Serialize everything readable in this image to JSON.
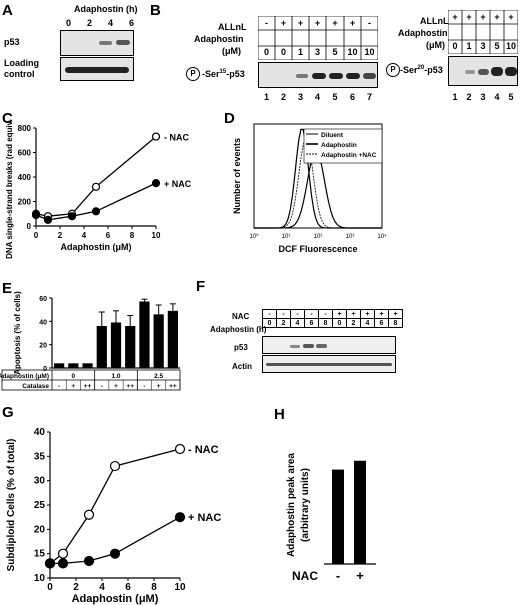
{
  "panel_letters": {
    "A": "A",
    "B": "B",
    "C": "C",
    "D": "D",
    "E": "E",
    "F": "F",
    "G": "G",
    "H": "H"
  },
  "panelA": {
    "title": "Adaphostin (h)",
    "times": [
      "0",
      "2",
      "4",
      "6"
    ],
    "row1": "p53",
    "row2": "Loading control"
  },
  "panelB1": {
    "row1": "ALLnL",
    "row2": "Adaphostin",
    "row2b": "(μM)",
    "allnl": [
      "-",
      "+",
      "+",
      "+",
      "+",
      "+",
      "-"
    ],
    "adaph": [
      "0",
      "0",
      "1",
      "3",
      "5",
      "10",
      "10"
    ],
    "lanes": [
      "1",
      "2",
      "3",
      "4",
      "5",
      "6",
      "7"
    ],
    "marker": "P",
    "blot_label": "-Ser",
    "sup": "15",
    "blot_tail": "-p53"
  },
  "panelB2": {
    "row1": "ALLnL",
    "row2": "Adaphostin",
    "row2b": "(μM)",
    "allnl": [
      "+",
      "+",
      "+",
      "+",
      "+"
    ],
    "adaph": [
      "0",
      "1",
      "3",
      "5",
      "10"
    ],
    "lanes": [
      "1",
      "2",
      "3",
      "4",
      "5"
    ],
    "marker": "P",
    "blot_label": "-Ser",
    "sup": "20",
    "blot_tail": "-p53"
  },
  "chart_data": [
    {
      "panel": "C",
      "type": "line",
      "xlabel": "Adaphostin (μM)",
      "ylabel": "DNA single-strand breaks (rad equivalents)",
      "xticks": [
        "0",
        "2",
        "4",
        "6",
        "8",
        "10"
      ],
      "yticks": [
        "0",
        "200",
        "400",
        "600",
        "800"
      ],
      "xlim": [
        0,
        10
      ],
      "ylim": [
        0,
        800
      ],
      "series": [
        {
          "name": "- NAC",
          "marker": "open",
          "x": [
            0,
            1,
            3,
            5,
            10
          ],
          "y": [
            100,
            80,
            100,
            320,
            730
          ]
        },
        {
          "name": "+ NAC",
          "marker": "filled",
          "x": [
            0,
            1,
            3,
            5,
            10
          ],
          "y": [
            90,
            50,
            80,
            120,
            350
          ]
        }
      ]
    },
    {
      "panel": "D",
      "type": "line",
      "xlabel": "DCF Fluorescence",
      "ylabel": "Number of events",
      "xticks": [
        "10⁰",
        "10¹",
        "10²",
        "10³",
        "10⁴"
      ],
      "legend": [
        "Diluent",
        "Adaphostin",
        "Adaphostin +NAC"
      ]
    },
    {
      "panel": "E",
      "type": "bar",
      "ylabel": "Apoptosis (% of cells)",
      "yticks": [
        "0",
        "20",
        "40",
        "60"
      ],
      "ylim": [
        0,
        60
      ],
      "table_row1_label": "Adaphostin (μM)",
      "table_row1": [
        "0",
        "1.0",
        "2.5"
      ],
      "table_row2_label": "Catalase",
      "table_row2": [
        "-",
        "+",
        "++",
        "-",
        "+",
        "++",
        "-",
        "+",
        "++"
      ],
      "values": [
        4,
        4,
        4,
        36,
        39,
        36,
        57,
        46,
        49
      ],
      "errors": [
        0,
        0,
        0,
        12,
        10,
        9,
        2,
        8,
        6
      ]
    },
    {
      "panel": "G",
      "type": "line",
      "xlabel": "Adaphostin (μM)",
      "ylabel": "Subdiploid Cells (% of total)",
      "xticks": [
        "0",
        "2",
        "4",
        "6",
        "8",
        "10"
      ],
      "yticks": [
        "10",
        "15",
        "20",
        "25",
        "30",
        "35",
        "40"
      ],
      "xlim": [
        0,
        10
      ],
      "ylim": [
        10,
        40
      ],
      "series": [
        {
          "name": "- NAC",
          "marker": "open",
          "x": [
            0,
            1,
            3,
            5,
            10
          ],
          "y": [
            13,
            15,
            23,
            33,
            36.5
          ]
        },
        {
          "name": "+ NAC",
          "marker": "filled",
          "x": [
            0,
            1,
            3,
            5,
            10
          ],
          "y": [
            13,
            13,
            13.5,
            15,
            22.5
          ]
        }
      ]
    },
    {
      "panel": "H",
      "type": "bar",
      "ylabel": "Adaphostin peak area (arbitrary units)",
      "xlabel_prefix": "NAC",
      "categories": [
        "-",
        "+"
      ],
      "values": [
        32,
        35
      ]
    }
  ],
  "panelF": {
    "nac_label": "NAC",
    "adaph_label": "Adaphostin (h)",
    "nac": [
      "-",
      "-",
      "-",
      "-",
      "-",
      "+",
      "+",
      "+",
      "+",
      "+"
    ],
    "hours": [
      "0",
      "2",
      "4",
      "6",
      "8",
      "0",
      "2",
      "4",
      "6",
      "8"
    ],
    "row1": "p53",
    "row2": "Actin"
  }
}
